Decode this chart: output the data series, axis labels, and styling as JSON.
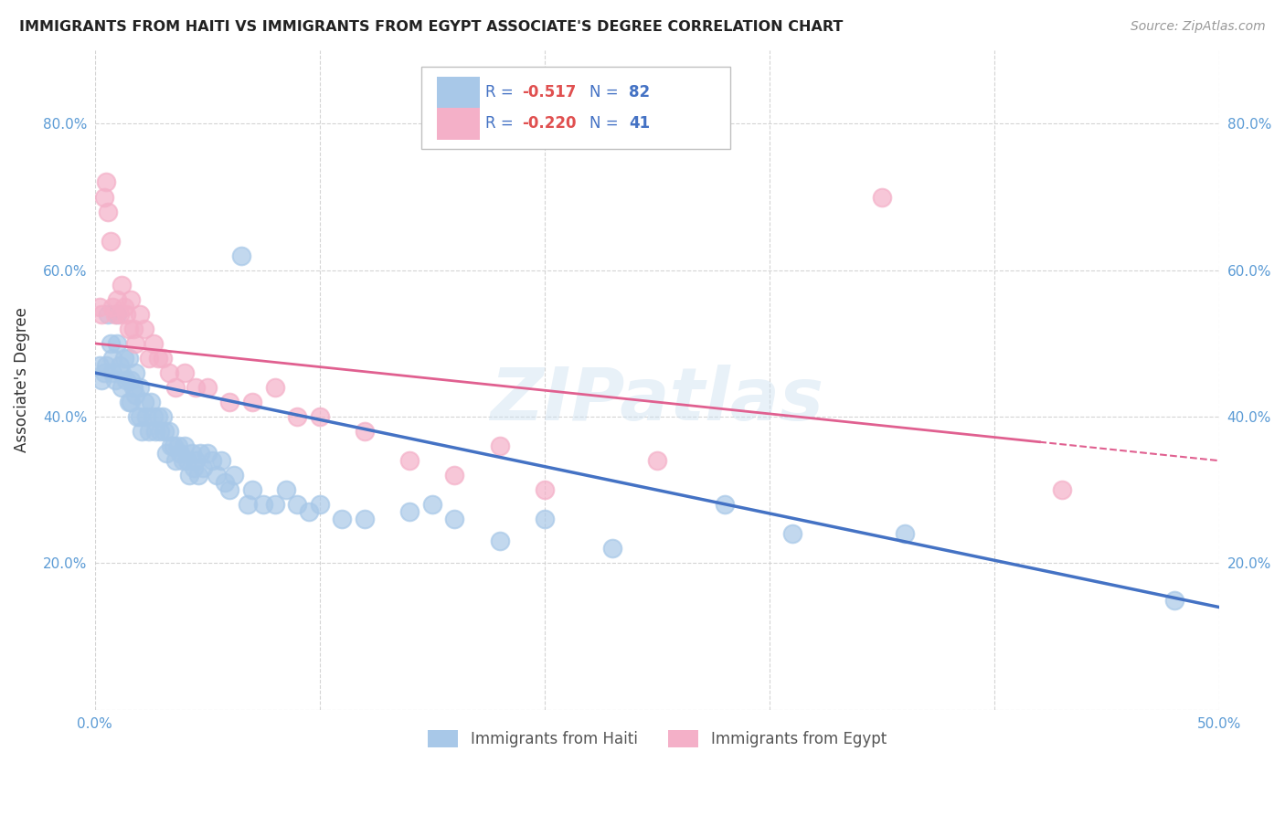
{
  "title": "IMMIGRANTS FROM HAITI VS IMMIGRANTS FROM EGYPT ASSOCIATE'S DEGREE CORRELATION CHART",
  "source": "Source: ZipAtlas.com",
  "ylabel": "Associate's Degree",
  "xlim": [
    0.0,
    0.5
  ],
  "ylim": [
    0.0,
    0.9
  ],
  "xticks": [
    0.0,
    0.1,
    0.2,
    0.3,
    0.4,
    0.5
  ],
  "yticks": [
    0.0,
    0.2,
    0.4,
    0.6,
    0.8
  ],
  "xticklabels": [
    "0.0%",
    "",
    "",
    "",
    "",
    "50.0%"
  ],
  "yticklabels": [
    "",
    "20.0%",
    "40.0%",
    "60.0%",
    "80.0%"
  ],
  "haiti_R": "-0.517",
  "haiti_N": "82",
  "egypt_R": "-0.220",
  "egypt_N": "41",
  "haiti_color": "#a8c8e8",
  "egypt_color": "#f4b0c8",
  "haiti_line_color": "#4472C4",
  "egypt_line_color": "#e06090",
  "tick_color": "#5b9bd5",
  "background_color": "#ffffff",
  "grid_color": "#d0d0d0",
  "watermark": "ZIPatlas",
  "haiti_x": [
    0.002,
    0.003,
    0.004,
    0.005,
    0.006,
    0.007,
    0.008,
    0.008,
    0.009,
    0.01,
    0.01,
    0.011,
    0.012,
    0.012,
    0.013,
    0.014,
    0.015,
    0.015,
    0.016,
    0.016,
    0.017,
    0.018,
    0.018,
    0.019,
    0.02,
    0.02,
    0.021,
    0.022,
    0.023,
    0.024,
    0.025,
    0.026,
    0.027,
    0.028,
    0.029,
    0.03,
    0.031,
    0.032,
    0.033,
    0.034,
    0.035,
    0.036,
    0.037,
    0.038,
    0.039,
    0.04,
    0.041,
    0.042,
    0.043,
    0.044,
    0.045,
    0.046,
    0.047,
    0.048,
    0.05,
    0.052,
    0.054,
    0.056,
    0.058,
    0.06,
    0.062,
    0.065,
    0.068,
    0.07,
    0.075,
    0.08,
    0.085,
    0.09,
    0.095,
    0.1,
    0.11,
    0.12,
    0.14,
    0.15,
    0.16,
    0.18,
    0.2,
    0.23,
    0.28,
    0.31,
    0.36,
    0.48
  ],
  "haiti_y": [
    0.47,
    0.45,
    0.46,
    0.47,
    0.54,
    0.5,
    0.48,
    0.46,
    0.45,
    0.54,
    0.5,
    0.47,
    0.46,
    0.44,
    0.48,
    0.45,
    0.48,
    0.42,
    0.45,
    0.42,
    0.44,
    0.46,
    0.43,
    0.4,
    0.44,
    0.4,
    0.38,
    0.42,
    0.4,
    0.38,
    0.42,
    0.4,
    0.38,
    0.4,
    0.38,
    0.4,
    0.38,
    0.35,
    0.38,
    0.36,
    0.36,
    0.34,
    0.36,
    0.35,
    0.34,
    0.36,
    0.34,
    0.32,
    0.35,
    0.33,
    0.34,
    0.32,
    0.35,
    0.33,
    0.35,
    0.34,
    0.32,
    0.34,
    0.31,
    0.3,
    0.32,
    0.62,
    0.28,
    0.3,
    0.28,
    0.28,
    0.3,
    0.28,
    0.27,
    0.28,
    0.26,
    0.26,
    0.27,
    0.28,
    0.26,
    0.23,
    0.26,
    0.22,
    0.28,
    0.24,
    0.24,
    0.15
  ],
  "egypt_x": [
    0.002,
    0.003,
    0.004,
    0.005,
    0.006,
    0.007,
    0.008,
    0.009,
    0.01,
    0.011,
    0.012,
    0.013,
    0.014,
    0.015,
    0.016,
    0.017,
    0.018,
    0.02,
    0.022,
    0.024,
    0.026,
    0.028,
    0.03,
    0.033,
    0.036,
    0.04,
    0.045,
    0.05,
    0.06,
    0.07,
    0.08,
    0.09,
    0.1,
    0.12,
    0.14,
    0.16,
    0.18,
    0.2,
    0.25,
    0.35,
    0.43
  ],
  "egypt_y": [
    0.55,
    0.54,
    0.7,
    0.72,
    0.68,
    0.64,
    0.55,
    0.54,
    0.56,
    0.54,
    0.58,
    0.55,
    0.54,
    0.52,
    0.56,
    0.52,
    0.5,
    0.54,
    0.52,
    0.48,
    0.5,
    0.48,
    0.48,
    0.46,
    0.44,
    0.46,
    0.44,
    0.44,
    0.42,
    0.42,
    0.44,
    0.4,
    0.4,
    0.38,
    0.34,
    0.32,
    0.36,
    0.3,
    0.34,
    0.7,
    0.3
  ]
}
